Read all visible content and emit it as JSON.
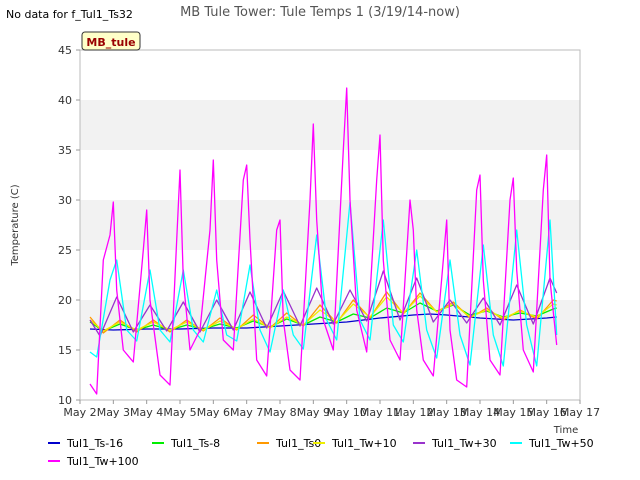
{
  "no_data_note": "No data for f_Tul1_Ts32",
  "badge": "MB_tule",
  "chart_data": {
    "type": "line",
    "title": "MB Tule Tower: Tule Temps 1 (3/19/14-now)",
    "xlabel": "Time",
    "ylabel": "Temperature (C)",
    "xlim": [
      2,
      17
    ],
    "ylim": [
      10,
      45
    ],
    "x_ticks": [
      2,
      3,
      4,
      5,
      6,
      7,
      8,
      9,
      10,
      11,
      12,
      13,
      14,
      15,
      16,
      17
    ],
    "x_tick_labels": [
      "May 2",
      "May 3",
      "May 4",
      "May 5",
      "May 6",
      "May 7",
      "May 8",
      "May 9",
      "May 10",
      "May 11",
      "May 12",
      "May 13",
      "May 14",
      "May 15",
      "May 16",
      "May 17"
    ],
    "y_ticks": [
      10,
      15,
      20,
      25,
      30,
      35,
      40,
      45
    ],
    "y_tick_labels": [
      "10",
      "15",
      "20",
      "25",
      "30",
      "35",
      "40",
      "45"
    ],
    "grid": "horizontal bands",
    "legend_position": "bottom",
    "series": [
      {
        "name": "Tul1_Ts-16",
        "color": "#0000cc",
        "x": [
          2.3,
          3,
          4,
          5,
          6,
          7,
          8,
          9,
          10,
          11,
          12,
          12.5,
          13,
          14,
          15,
          16,
          16.3
        ],
        "y": [
          17.1,
          17.0,
          17.1,
          17.1,
          17.2,
          17.2,
          17.4,
          17.6,
          17.8,
          18.2,
          18.5,
          18.6,
          18.5,
          18.2,
          18.0,
          18.2,
          18.3
        ]
      },
      {
        "name": "Tul1_Ts-8",
        "color": "#00ee00",
        "x": [
          2.3,
          2.7,
          3.2,
          3.7,
          4.2,
          4.7,
          5.2,
          5.7,
          6.2,
          6.7,
          7.2,
          7.7,
          8.2,
          8.7,
          9.2,
          9.7,
          10.2,
          10.7,
          11.2,
          11.7,
          12.2,
          12.7,
          13.2,
          13.7,
          14.2,
          14.7,
          15.2,
          15.7,
          16.2,
          16.3
        ],
        "y": [
          17.8,
          16.9,
          17.6,
          17.0,
          17.5,
          17.0,
          17.5,
          17.1,
          17.6,
          17.2,
          17.9,
          17.3,
          18.1,
          17.5,
          18.3,
          17.8,
          18.6,
          18.2,
          19.2,
          18.7,
          19.7,
          18.9,
          19.5,
          18.5,
          18.9,
          18.3,
          18.7,
          18.4,
          19.1,
          19.2
        ]
      },
      {
        "name": "Tul1_Ts0",
        "color": "#ff9900",
        "x": [
          2.3,
          2.7,
          3.2,
          3.7,
          4.2,
          4.7,
          5.2,
          5.7,
          6.2,
          6.7,
          7.2,
          7.7,
          8.2,
          8.7,
          9.2,
          9.7,
          10.2,
          10.7,
          11.2,
          11.7,
          12.2,
          12.7,
          13.2,
          13.7,
          14.2,
          14.7,
          15.2,
          15.7,
          16.2,
          16.3
        ],
        "y": [
          18.3,
          16.7,
          18.0,
          16.8,
          18.0,
          16.8,
          18.0,
          16.9,
          18.2,
          17.0,
          18.5,
          17.2,
          18.7,
          17.4,
          19.5,
          17.7,
          20.0,
          18.2,
          20.8,
          18.6,
          20.7,
          18.8,
          19.8,
          18.2,
          19.2,
          18.0,
          19.0,
          18.1,
          20.0,
          19.9
        ]
      },
      {
        "name": "Tul1_Tw+10",
        "color": "#eeee00",
        "x": [
          2.3,
          2.7,
          3.2,
          3.7,
          4.2,
          4.7,
          5.2,
          5.7,
          6.2,
          6.7,
          7.2,
          7.7,
          8.2,
          8.7,
          9.2,
          9.7,
          10.2,
          10.7,
          11.2,
          11.7,
          12.2,
          12.7,
          13.2,
          13.7,
          14.2,
          14.7,
          15.2,
          15.7,
          16.2,
          16.3
        ],
        "y": [
          18.0,
          16.9,
          17.8,
          17.0,
          17.8,
          17.0,
          17.8,
          17.0,
          17.9,
          17.1,
          18.1,
          17.2,
          18.3,
          17.5,
          19.0,
          17.8,
          19.6,
          18.3,
          20.3,
          18.7,
          20.4,
          18.8,
          19.6,
          18.3,
          19.0,
          18.2,
          18.9,
          18.3,
          19.6,
          19.5
        ]
      },
      {
        "name": "Tul1_Tw+30",
        "color": "#9933cc",
        "x": [
          2.3,
          2.6,
          3.1,
          3.6,
          4.1,
          4.6,
          5.1,
          5.6,
          6.1,
          6.6,
          7.1,
          7.6,
          8.1,
          8.6,
          9.1,
          9.6,
          10.1,
          10.6,
          11.1,
          11.6,
          12.1,
          12.6,
          13.1,
          13.6,
          14.1,
          14.6,
          15.1,
          15.6,
          16.1,
          16.3
        ],
        "y": [
          18.0,
          16.4,
          20.3,
          16.8,
          19.5,
          16.9,
          19.8,
          16.8,
          20.0,
          17.0,
          20.8,
          17.2,
          20.9,
          17.4,
          21.2,
          17.6,
          21.0,
          17.9,
          22.9,
          18.0,
          22.2,
          17.8,
          20.0,
          17.7,
          20.2,
          17.5,
          21.5,
          17.6,
          22.2,
          20.7
        ]
      },
      {
        "name": "Tul1_Tw+50",
        "color": "#00ffff",
        "x": [
          2.3,
          2.5,
          2.9,
          3.1,
          3.4,
          3.7,
          4.1,
          4.4,
          4.7,
          5.1,
          5.4,
          5.7,
          6.1,
          6.4,
          6.7,
          7.1,
          7.4,
          7.7,
          8.1,
          8.4,
          8.7,
          9.1,
          9.4,
          9.7,
          10.1,
          10.4,
          10.7,
          11.1,
          11.4,
          11.7,
          12.1,
          12.4,
          12.7,
          13.1,
          13.4,
          13.7,
          14.1,
          14.4,
          14.7,
          15.1,
          15.4,
          15.7,
          16.1,
          16.3
        ],
        "y": [
          14.8,
          14.3,
          22.0,
          24.0,
          17.0,
          15.9,
          23.0,
          17.0,
          15.8,
          23.0,
          17.0,
          15.8,
          21.0,
          16.5,
          15.9,
          23.5,
          17.0,
          14.8,
          21.0,
          16.5,
          15.1,
          26.5,
          18.0,
          16.0,
          29.8,
          18.0,
          16.0,
          28.0,
          17.5,
          15.8,
          25.0,
          17.0,
          14.2,
          24.0,
          16.5,
          13.5,
          25.5,
          16.5,
          13.4,
          27.0,
          17.5,
          13.4,
          28.0,
          16.5
        ]
      },
      {
        "name": "Tul1_Tw+100",
        "color": "#ff00ff",
        "x": [
          2.3,
          2.5,
          2.7,
          2.9,
          3.0,
          3.1,
          3.3,
          3.6,
          3.9,
          4.0,
          4.1,
          4.4,
          4.7,
          4.9,
          5.0,
          5.1,
          5.3,
          5.6,
          5.9,
          6.0,
          6.1,
          6.3,
          6.6,
          6.9,
          7.0,
          7.1,
          7.3,
          7.6,
          7.9,
          8.0,
          8.1,
          8.3,
          8.6,
          8.9,
          9.0,
          9.1,
          9.3,
          9.6,
          9.9,
          10.0,
          10.1,
          10.3,
          10.6,
          10.9,
          11.0,
          11.1,
          11.3,
          11.6,
          11.9,
          12.0,
          12.1,
          12.3,
          12.6,
          12.9,
          13.0,
          13.1,
          13.3,
          13.6,
          13.9,
          14.0,
          14.1,
          14.3,
          14.6,
          14.9,
          15.0,
          15.1,
          15.3,
          15.6,
          15.9,
          16.0,
          16.1,
          16.3
        ],
        "y": [
          11.6,
          10.6,
          24.0,
          26.5,
          29.8,
          21.0,
          15.0,
          13.8,
          25.0,
          29.0,
          20.0,
          12.5,
          11.5,
          26.0,
          33.0,
          22.0,
          15.0,
          17.0,
          27.0,
          34.0,
          24.0,
          16.0,
          15.0,
          32.0,
          33.5,
          26.0,
          14.0,
          12.4,
          27.0,
          28.0,
          18.0,
          13.0,
          12.0,
          30.0,
          37.6,
          28.0,
          18.0,
          15.0,
          35.0,
          41.2,
          30.0,
          19.0,
          14.8,
          32.0,
          36.5,
          24.0,
          16.0,
          14.0,
          30.0,
          27.0,
          19.0,
          14.0,
          12.4,
          24.0,
          28.0,
          17.0,
          12.0,
          11.3,
          31.0,
          32.5,
          22.0,
          14.0,
          12.5,
          30.0,
          32.2,
          23.0,
          15.0,
          12.8,
          31.0,
          34.5,
          22.0,
          15.5
        ]
      }
    ]
  }
}
